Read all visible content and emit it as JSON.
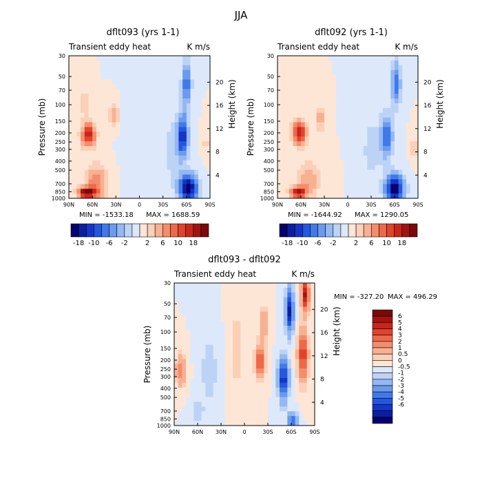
{
  "figure": {
    "title": "JJA"
  },
  "colors": {
    "neg": [
      "#08006e",
      "#0a1fa0",
      "#1435c8",
      "#2457e0",
      "#3f7ae8",
      "#6a9bee",
      "#93b8f3",
      "#bdd3f6",
      "#dde9fb"
    ],
    "pos": [
      "#fde6d6",
      "#fbd0b7",
      "#f8b093",
      "#f48d6c",
      "#ee684a",
      "#e2432c",
      "#c9261a",
      "#a11410",
      "#7a0a08"
    ]
  },
  "panels": [
    {
      "id": "p1",
      "title": "dflt093 (yrs 1-1)",
      "subtitle_left": "Transient eddy heat",
      "subtitle_right": "K m/s",
      "left_axis_label": "Pressure (mb)",
      "right_axis_label": "Height (km)",
      "pressure_ticks": [
        "30",
        "50",
        "70",
        "100",
        "150",
        "200",
        "250",
        "300",
        "400",
        "500",
        "700",
        "850",
        "1000"
      ],
      "height_ticks": [
        "20",
        "16",
        "12",
        "8",
        "4"
      ],
      "lat_ticks": [
        "90N",
        "60N",
        "30N",
        "0",
        "30S",
        "60S",
        "90S"
      ],
      "min_label": "MIN = -1533.18",
      "max_label": "MAX = 1688.59"
    },
    {
      "id": "p2",
      "title": "dflt092 (yrs 1-1)",
      "subtitle_left": "Transient eddy heat",
      "subtitle_right": "K m/s",
      "left_axis_label": "Pressure (mb)",
      "right_axis_label": "Height (km)",
      "pressure_ticks": [
        "30",
        "50",
        "70",
        "100",
        "150",
        "200",
        "250",
        "300",
        "400",
        "500",
        "700",
        "850",
        "1000"
      ],
      "height_ticks": [
        "20",
        "16",
        "12",
        "8",
        "4"
      ],
      "lat_ticks": [
        "90N",
        "60N",
        "30N",
        "0",
        "30S",
        "60S",
        "90S"
      ],
      "min_label": "MIN = -1644.92",
      "max_label": "MAX = 1290.05"
    },
    {
      "id": "p3",
      "title": "dflt093 - dflt092",
      "subtitle_left": "Transient eddy heat",
      "subtitle_right": "K m/s",
      "left_axis_label": "Pressure (mb)",
      "right_axis_label": "Height (km)",
      "pressure_ticks": [
        "30",
        "50",
        "70",
        "100",
        "150",
        "200",
        "250",
        "300",
        "400",
        "500",
        "700",
        "850",
        "1000"
      ],
      "height_ticks": [
        "20",
        "16",
        "12",
        "8",
        "4"
      ],
      "lat_ticks": [
        "90N",
        "60N",
        "30N",
        "0",
        "30S",
        "60S",
        "90S"
      ],
      "min_label": "MIN = -327.20",
      "max_label": "MAX = 496.29"
    }
  ],
  "colorbars": {
    "horizontal": {
      "labels": [
        "-18",
        "-10",
        "-6",
        "-2",
        "2",
        "6",
        "10",
        "18"
      ]
    },
    "vertical": {
      "labels": [
        "6",
        "5",
        "4",
        "3",
        "2",
        "1",
        "0.5",
        "0",
        "-0.5",
        "-1",
        "-2",
        "-3",
        "-4",
        "-5",
        "-6"
      ]
    }
  },
  "chart_data": [
    {
      "type": "heatmap",
      "title": "dflt093 (yrs 1-1)",
      "subtitle": "Transient eddy heat",
      "units": "K m/s",
      "xlabel": "",
      "ylabel": "Pressure (mb)",
      "ylabel_right": "Height (km)",
      "x_ticks": [
        "90N",
        "60N",
        "30N",
        "0",
        "30S",
        "60S",
        "90S"
      ],
      "y_ticks": [
        30,
        50,
        70,
        100,
        150,
        200,
        250,
        300,
        400,
        500,
        700,
        850,
        1000
      ],
      "y_scale": "log",
      "min": -1533.18,
      "max": 1688.59,
      "features": [
        {
          "lat": 65,
          "p": 200,
          "value": 14
        },
        {
          "lat": 68,
          "p": 850,
          "value": 18
        },
        {
          "lat": 35,
          "p": 120,
          "value": 6
        },
        {
          "lat": -62,
          "p": 800,
          "value": -18
        },
        {
          "lat": -55,
          "p": 200,
          "value": -14
        },
        {
          "lat": -60,
          "p": 40,
          "value": -10
        }
      ]
    },
    {
      "type": "heatmap",
      "title": "dflt092 (yrs 1-1)",
      "subtitle": "Transient eddy heat",
      "units": "K m/s",
      "xlabel": "",
      "ylabel": "Pressure (mb)",
      "ylabel_right": "Height (km)",
      "x_ticks": [
        "90N",
        "60N",
        "30N",
        "0",
        "30S",
        "60S",
        "90S"
      ],
      "y_ticks": [
        30,
        50,
        70,
        100,
        150,
        200,
        250,
        300,
        400,
        500,
        700,
        850,
        1000
      ],
      "y_scale": "log",
      "min": -1644.92,
      "max": 1290.05,
      "features": [
        {
          "lat": 62,
          "p": 200,
          "value": 14
        },
        {
          "lat": 65,
          "p": 850,
          "value": 14
        },
        {
          "lat": 35,
          "p": 130,
          "value": 6
        },
        {
          "lat": -60,
          "p": 800,
          "value": -18
        },
        {
          "lat": -50,
          "p": 200,
          "value": -10
        },
        {
          "lat": -62,
          "p": 50,
          "value": -10
        }
      ]
    },
    {
      "type": "heatmap",
      "title": "dflt093 - dflt092",
      "subtitle": "Transient eddy heat",
      "units": "K m/s",
      "xlabel": "",
      "ylabel": "Pressure (mb)",
      "ylabel_right": "Height (km)",
      "x_ticks": [
        "90N",
        "60N",
        "30N",
        "0",
        "30S",
        "60S",
        "90S"
      ],
      "y_ticks": [
        30,
        50,
        70,
        100,
        150,
        200,
        250,
        300,
        400,
        500,
        700,
        850,
        1000
      ],
      "y_scale": "log",
      "min": -327.2,
      "max": 496.29,
      "features": [
        {
          "lat": 82,
          "p": 250,
          "value": 3
        },
        {
          "lat": -20,
          "p": 200,
          "value": 4
        },
        {
          "lat": -50,
          "p": 300,
          "value": -6
        },
        {
          "lat": -58,
          "p": 60,
          "value": -6
        },
        {
          "lat": -75,
          "p": 200,
          "value": 5
        },
        {
          "lat": -78,
          "p": 40,
          "value": 6
        }
      ]
    }
  ]
}
